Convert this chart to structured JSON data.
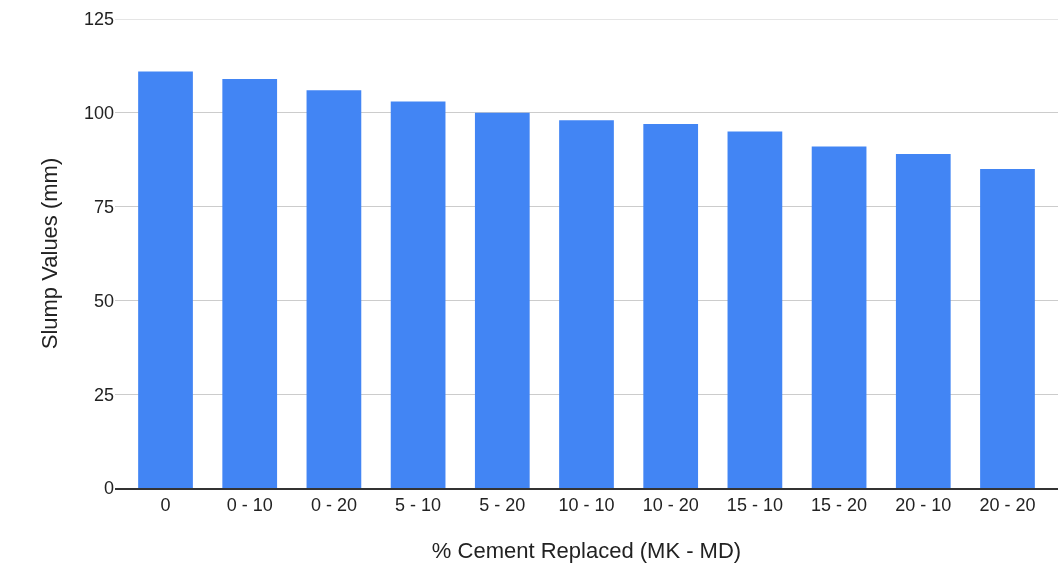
{
  "chart_data": {
    "type": "bar",
    "xlabel": "% Cement Replaced (MK - MD)",
    "ylabel": "Slump Values (mm)",
    "categories": [
      "0",
      "0 - 10",
      "0 - 20",
      "5 - 10",
      "5 - 20",
      "10 - 10",
      "10 - 20",
      "15 - 10",
      "15 - 20",
      "20 - 10",
      "20 - 20"
    ],
    "values": [
      111,
      109,
      106,
      103,
      100,
      98,
      97,
      95,
      91,
      89,
      85
    ],
    "color": "#4285f4",
    "ylim": [
      0,
      125
    ],
    "yticks": [
      0,
      25,
      50,
      75,
      100,
      125
    ],
    "grid": "y"
  }
}
